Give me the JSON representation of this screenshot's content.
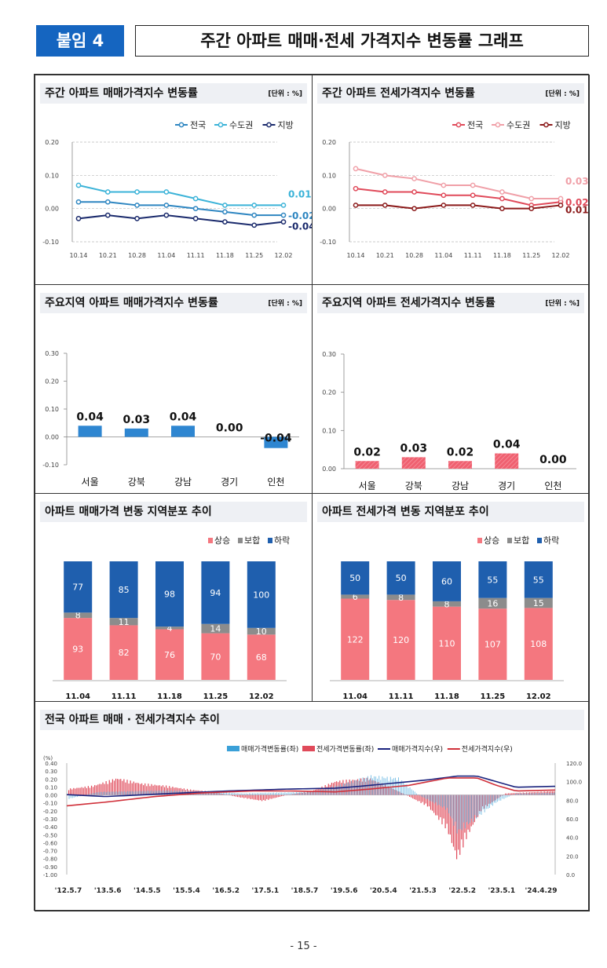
{
  "header": {
    "badge": "붙임 4",
    "title": "주간 아파트 매매·전세 가격지수 변동률 그래프"
  },
  "page_number": "- 15 -",
  "chart_data": [
    {
      "id": "sale_weekly",
      "type": "line",
      "title": "주간 아파트 매매가격지수 변동률",
      "unit": "[단위 : %]",
      "categories": [
        "10.14",
        "10.21",
        "10.28",
        "11.04",
        "11.11",
        "11.18",
        "11.25",
        "12.02"
      ],
      "ylim": [
        -0.1,
        0.2
      ],
      "yticks": [
        "0.20",
        "0.10",
        "0.00",
        "-0.10"
      ],
      "series": [
        {
          "name": "전국",
          "color": "#2e86c1",
          "values": [
            0.02,
            0.02,
            0.01,
            0.01,
            0.0,
            -0.01,
            -0.02,
            -0.02
          ],
          "end_label": "-0.02"
        },
        {
          "name": "수도권",
          "color": "#3bb3d8",
          "values": [
            0.07,
            0.05,
            0.05,
            0.05,
            0.03,
            0.01,
            0.01,
            0.01
          ],
          "end_label": "0.01"
        },
        {
          "name": "지방",
          "color": "#1a2a6c",
          "values": [
            -0.03,
            -0.02,
            -0.03,
            -0.02,
            -0.03,
            -0.04,
            -0.05,
            -0.04
          ],
          "end_label": "-0.04"
        }
      ]
    },
    {
      "id": "jeonse_weekly",
      "type": "line",
      "title": "주간 아파트 전세가격지수 변동률",
      "unit": "[단위 : %]",
      "categories": [
        "10.14",
        "10.21",
        "10.28",
        "11.04",
        "11.11",
        "11.18",
        "11.25",
        "12.02"
      ],
      "ylim": [
        -0.1,
        0.2
      ],
      "yticks": [
        "0.20",
        "0.10",
        "0.00",
        "-0.10"
      ],
      "series": [
        {
          "name": "전국",
          "color": "#e04a5a",
          "values": [
            0.06,
            0.05,
            0.05,
            0.04,
            0.04,
            0.03,
            0.01,
            0.02
          ],
          "end_label": "0.02"
        },
        {
          "name": "수도권",
          "color": "#f0a0a8",
          "values": [
            0.12,
            0.1,
            0.09,
            0.07,
            0.07,
            0.05,
            0.03,
            0.03
          ],
          "end_label": "0.03"
        },
        {
          "name": "지방",
          "color": "#8b1a1a",
          "values": [
            0.01,
            0.01,
            0.0,
            0.01,
            0.01,
            0.0,
            0.0,
            0.01
          ],
          "end_label": "0.01"
        }
      ]
    },
    {
      "id": "sale_region",
      "type": "bar",
      "title": "주요지역 아파트 매매가격지수 변동률",
      "unit": "[단위 : %]",
      "categories": [
        "서울",
        "강북",
        "강남",
        "경기",
        "인천"
      ],
      "values": [
        0.04,
        0.03,
        0.04,
        0.0,
        -0.04
      ],
      "labels": [
        "0.04",
        "0.03",
        "0.04",
        "0.00",
        "-0.04"
      ],
      "color": "#2e86d1",
      "ylim": [
        -0.1,
        0.3
      ],
      "yticks": [
        "0.30",
        "0.20",
        "0.10",
        "0.00",
        "-0.10"
      ]
    },
    {
      "id": "jeonse_region",
      "type": "bar",
      "title": "주요지역 아파트 전세가격지수 변동률",
      "unit": "[단위 : %]",
      "categories": [
        "서울",
        "강북",
        "강남",
        "경기",
        "인천"
      ],
      "values": [
        0.02,
        0.03,
        0.02,
        0.04,
        0.0
      ],
      "labels": [
        "0.02",
        "0.03",
        "0.02",
        "0.04",
        "0.00"
      ],
      "color": "#f06070",
      "ylim": [
        0.0,
        0.3
      ],
      "yticks": [
        "0.30",
        "0.20",
        "0.10",
        "0.00"
      ]
    },
    {
      "id": "sale_distribution",
      "type": "bar",
      "title": "아파트 매매가격 변동 지역분포 추이",
      "categories": [
        "11.04",
        "11.11",
        "11.18",
        "11.25",
        "12.02"
      ],
      "series": [
        {
          "name": "상승",
          "color": "#f4777f",
          "values": [
            93,
            82,
            76,
            70,
            68
          ]
        },
        {
          "name": "보합",
          "color": "#8c8c8c",
          "values": [
            8,
            11,
            4,
            14,
            10
          ]
        },
        {
          "name": "하락",
          "color": "#1f5fae",
          "values": [
            77,
            85,
            98,
            94,
            100
          ]
        }
      ]
    },
    {
      "id": "jeonse_distribution",
      "type": "bar",
      "title": "아파트 전세가격 변동 지역분포 추이",
      "categories": [
        "11.04",
        "11.11",
        "11.18",
        "11.25",
        "12.02"
      ],
      "series": [
        {
          "name": "상승",
          "color": "#f4777f",
          "values": [
            122,
            120,
            110,
            107,
            108
          ]
        },
        {
          "name": "보합",
          "color": "#8c8c8c",
          "values": [
            6,
            8,
            8,
            16,
            15
          ]
        },
        {
          "name": "하락",
          "color": "#1f5fae",
          "values": [
            50,
            50,
            60,
            55,
            55
          ]
        }
      ]
    },
    {
      "id": "national_trend",
      "type": "bar",
      "title": "전국 아파트 매매 · 전세가격지수 추이",
      "y_unit": "(%)",
      "yticks_left": [
        "0.40",
        "0.30",
        "0.20",
        "0.10",
        "0.00",
        "-0.10",
        "-0.20",
        "-0.30",
        "-0.40",
        "-0.50",
        "-0.60",
        "-0.70",
        "-0.80",
        "-0.90",
        "-1.00"
      ],
      "yticks_right": [
        "120.0",
        "100.0",
        "80.0",
        "60.0",
        "40.0",
        "20.0",
        "0.0"
      ],
      "ylim_left": [
        -1.0,
        0.4
      ],
      "ylim_right": [
        0.0,
        120.0
      ],
      "x_ticks": [
        "'12.5.7",
        "'13.5.6",
        "'14.5.5",
        "'15.5.4",
        "'16.5.2",
        "'17.5.1",
        "'18.5.7",
        "'19.5.6",
        "'20.5.4",
        "'21.5.3",
        "'22.5.2",
        "'23.5.1",
        "'24.4.29"
      ],
      "legend": [
        {
          "name": "매매가격변동률(좌)",
          "kind": "bar",
          "color": "#3aa0d8"
        },
        {
          "name": "전세가격변동률(좌)",
          "kind": "bar",
          "color": "#e04a5a"
        },
        {
          "name": "매매가격지수(우)",
          "kind": "line",
          "color": "#1a237e"
        },
        {
          "name": "전세가격지수(우)",
          "kind": "line",
          "color": "#d0303a"
        }
      ],
      "sale_index_anchors": [
        [
          0,
          86
        ],
        [
          0.08,
          84
        ],
        [
          0.2,
          87
        ],
        [
          0.33,
          90
        ],
        [
          0.45,
          92
        ],
        [
          0.55,
          93
        ],
        [
          0.6,
          95
        ],
        [
          0.68,
          99
        ],
        [
          0.74,
          102
        ],
        [
          0.8,
          106
        ],
        [
          0.84,
          106
        ],
        [
          0.88,
          100
        ],
        [
          0.92,
          94
        ],
        [
          1,
          95
        ]
      ],
      "jeonse_index_anchors": [
        [
          0,
          74
        ],
        [
          0.08,
          78
        ],
        [
          0.18,
          84
        ],
        [
          0.28,
          88
        ],
        [
          0.38,
          90
        ],
        [
          0.46,
          90
        ],
        [
          0.55,
          89
        ],
        [
          0.62,
          92
        ],
        [
          0.7,
          96
        ],
        [
          0.78,
          104
        ],
        [
          0.84,
          104
        ],
        [
          0.88,
          96
        ],
        [
          0.92,
          90
        ],
        [
          1,
          91
        ]
      ],
      "jeonse_rate_anchors": [
        [
          0,
          0.08
        ],
        [
          0.05,
          0.12
        ],
        [
          0.1,
          0.22
        ],
        [
          0.15,
          0.15
        ],
        [
          0.2,
          0.12
        ],
        [
          0.25,
          0.07
        ],
        [
          0.3,
          0.04
        ],
        [
          0.35,
          -0.03
        ],
        [
          0.4,
          -0.08
        ],
        [
          0.45,
          0.0
        ],
        [
          0.5,
          0.05
        ],
        [
          0.55,
          0.18
        ],
        [
          0.62,
          0.22
        ],
        [
          0.68,
          0.05
        ],
        [
          0.74,
          -0.15
        ],
        [
          0.78,
          -0.45
        ],
        [
          0.8,
          -0.85
        ],
        [
          0.82,
          -0.55
        ],
        [
          0.85,
          -0.2
        ],
        [
          0.9,
          0.02
        ],
        [
          1,
          0.05
        ]
      ],
      "sale_rate_anchors": [
        [
          0,
          -0.05
        ],
        [
          0.06,
          0.04
        ],
        [
          0.12,
          0.05
        ],
        [
          0.2,
          0.06
        ],
        [
          0.3,
          0.04
        ],
        [
          0.36,
          0.02
        ],
        [
          0.42,
          0.03
        ],
        [
          0.5,
          0.04
        ],
        [
          0.55,
          0.12
        ],
        [
          0.62,
          0.25
        ],
        [
          0.68,
          0.22
        ],
        [
          0.72,
          0.0
        ],
        [
          0.78,
          -0.2
        ],
        [
          0.8,
          -0.5
        ],
        [
          0.83,
          -0.35
        ],
        [
          0.88,
          -0.1
        ],
        [
          0.92,
          0.02
        ],
        [
          1,
          0.03
        ]
      ]
    }
  ]
}
